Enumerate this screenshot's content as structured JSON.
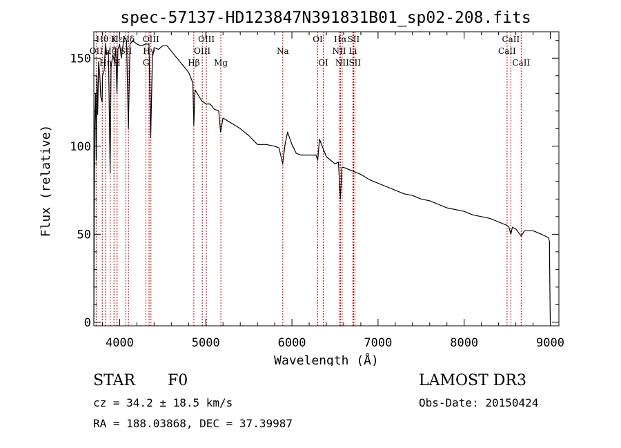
{
  "chart_data": {
    "type": "line",
    "title": "spec-57137-HD123847N391831B01_sp02-208.fits",
    "xlabel": "Wavelength (Å)",
    "ylabel": "Flux (relative)",
    "xlim": [
      3700,
      9100
    ],
    "ylim": [
      -2,
      165
    ],
    "x_ticks": [
      4000,
      5000,
      6000,
      7000,
      8000,
      9000
    ],
    "y_ticks": [
      0,
      50,
      100,
      150
    ],
    "x_tick_labels": [
      "4000",
      "5000",
      "6000",
      "7000",
      "8000",
      "9000"
    ],
    "y_tick_labels": [
      "0",
      "50",
      "100",
      "150"
    ],
    "series": [
      {
        "name": "spectrum",
        "x": [
          3700,
          3705,
          3712,
          3720,
          3728,
          3736,
          3745,
          3755,
          3770,
          3780,
          3797,
          3800,
          3820,
          3835,
          3850,
          3870,
          3889,
          3900,
          3920,
          3940,
          3955,
          3968,
          3980,
          4000,
          4020,
          4050,
          4080,
          4101,
          4120,
          4150,
          4200,
          4250,
          4300,
          4340,
          4360,
          4380,
          4400,
          4450,
          4500,
          4550,
          4600,
          4700,
          4800,
          4850,
          4861,
          4875,
          4900,
          4950,
          5000,
          5050,
          5100,
          5150,
          5172,
          5200,
          5300,
          5400,
          5500,
          5600,
          5700,
          5800,
          5850,
          5893,
          5920,
          5950,
          6000,
          6050,
          6100,
          6200,
          6280,
          6300,
          6320,
          6400,
          6500,
          6540,
          6563,
          6580,
          6600,
          6700,
          6800,
          6900,
          7000,
          7100,
          7200,
          7300,
          7400,
          7500,
          7600,
          7700,
          7800,
          7900,
          8000,
          8100,
          8200,
          8300,
          8400,
          8498,
          8520,
          8542,
          8560,
          8600,
          8662,
          8700,
          8800,
          8900,
          8980,
          8990,
          8995,
          9000
        ],
        "y": [
          0,
          70,
          115,
          130,
          92,
          140,
          118,
          148,
          140,
          128,
          125,
          140,
          143,
          158,
          152,
          154,
          85,
          145,
          152,
          148,
          156,
          130,
          155,
          158,
          150,
          162,
          160,
          110,
          158,
          160,
          158,
          157,
          158,
          158,
          105,
          150,
          156,
          155,
          157,
          157,
          154,
          148,
          142,
          136,
          112,
          132,
          130,
          126,
          124,
          124,
          121,
          120,
          108,
          116,
          113,
          110,
          106,
          101,
          101,
          100,
          99,
          90,
          101,
          108,
          101,
          96,
          95,
          95,
          95,
          92,
          104,
          94,
          90,
          91,
          70,
          88,
          88,
          86,
          84,
          81,
          79,
          77,
          75,
          73,
          72,
          70,
          69,
          67,
          65,
          64,
          63,
          61,
          60,
          59,
          57,
          55,
          54,
          50,
          54,
          53,
          49,
          52,
          52,
          50,
          48,
          46,
          20,
          0
        ]
      }
    ],
    "lines": [
      {
        "label": "OII",
        "x": 3727,
        "row": 2
      },
      {
        "label": "Hθ",
        "x": 3798,
        "row": 1
      },
      {
        "label": "Hη",
        "x": 3835,
        "row": 3
      },
      {
        "label": "Hζ",
        "x": 3889,
        "row": 2
      },
      {
        "label": "K",
        "x": 3934,
        "row": 1
      },
      {
        "label": "H",
        "x": 3968,
        "row": 3
      },
      {
        "label": "Hε",
        "x": 3970,
        "row": 1
      },
      {
        "label": "SII",
        "x": 4072,
        "row": 2
      },
      {
        "label": "Hδ",
        "x": 4102,
        "row": 1
      },
      {
        "label": "G",
        "x": 4305,
        "row": 3
      },
      {
        "label": "Hγ",
        "x": 4341,
        "row": 2
      },
      {
        "label": "OIII",
        "x": 4363,
        "row": 1
      },
      {
        "label": "Hβ",
        "x": 4861,
        "row": 3
      },
      {
        "label": "OIII",
        "x": 4959,
        "row": 2
      },
      {
        "label": "OIII",
        "x": 5007,
        "row": 1
      },
      {
        "label": "Mg",
        "x": 5175,
        "row": 3
      },
      {
        "label": "Na",
        "x": 5894,
        "row": 2
      },
      {
        "label": "OI",
        "x": 6300,
        "row": 1
      },
      {
        "label": "OI",
        "x": 6364,
        "row": 3
      },
      {
        "label": "NII",
        "x": 6548,
        "row": 2
      },
      {
        "label": "Hα",
        "x": 6563,
        "row": 1
      },
      {
        "label": "NII",
        "x": 6583,
        "row": 3
      },
      {
        "label": "Li",
        "x": 6708,
        "row": 2
      },
      {
        "label": "SII",
        "x": 6716,
        "row": 1
      },
      {
        "label": "SII",
        "x": 6731,
        "row": 3
      },
      {
        "label": "CaII",
        "x": 8498,
        "row": 2
      },
      {
        "label": "CaII",
        "x": 8542,
        "row": 1
      },
      {
        "label": "CaII",
        "x": 8662,
        "row": 3
      }
    ]
  },
  "info": {
    "class": "STAR",
    "subclass": "F0",
    "survey": "LAMOST DR3",
    "redshift": "cz = 34.2 ± 18.5 km/s",
    "obs_date": "Obs-Date: 20150424",
    "coords": "RA = 188.03868, DEC =  37.39987"
  },
  "colors": {
    "line_markers": "#c00000",
    "spectrum": "#000000"
  }
}
